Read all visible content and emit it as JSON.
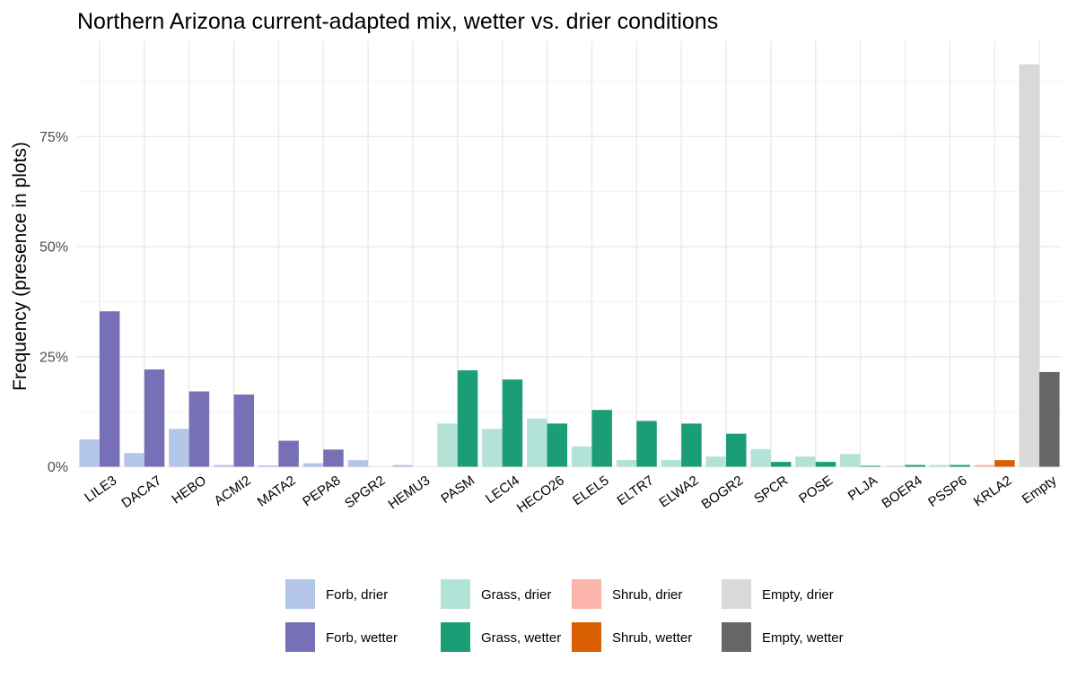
{
  "chart_data": {
    "type": "bar",
    "title": "Northern Arizona current-adapted mix, wetter vs. drier conditions",
    "xlabel": "",
    "ylabel": "Frequency (presence in plots)",
    "ylim": [
      0,
      0.95
    ],
    "yticks": [
      0,
      0.25,
      0.5,
      0.75
    ],
    "ytick_labels": [
      "0%",
      "25%",
      "50%",
      "75%"
    ],
    "grid": true,
    "legend_position": "bottom",
    "categories": [
      "LILE3",
      "DACA7",
      "HEBO",
      "ACMI2",
      "MATA2",
      "PEPA8",
      "SPGR2",
      "HEMU3",
      "PASM",
      "LECI4",
      "HECO26",
      "ELEL5",
      "ELTR7",
      "ELWA2",
      "BOGR2",
      "SPCR",
      "POSE",
      "PLJA",
      "BOER4",
      "PSSP6",
      "KRLA2",
      "Empty"
    ],
    "groups": [
      "Forb",
      "Forb",
      "Forb",
      "Forb",
      "Forb",
      "Forb",
      "Forb",
      "Forb",
      "Grass",
      "Grass",
      "Grass",
      "Grass",
      "Grass",
      "Grass",
      "Grass",
      "Grass",
      "Grass",
      "Grass",
      "Grass",
      "Grass",
      "Shrub",
      "Empty"
    ],
    "series": [
      {
        "name": "drier",
        "values": [
          0.062,
          0.031,
          0.086,
          0.004,
          0.003,
          0.008,
          0.015,
          0.004,
          0.098,
          0.086,
          0.109,
          0.046,
          0.015,
          0.015,
          0.023,
          0.04,
          0.023,
          0.029,
          0.002,
          0.004,
          0.004,
          0.914
        ]
      },
      {
        "name": "wetter",
        "values": [
          0.353,
          0.221,
          0.171,
          0.164,
          0.059,
          0.039,
          0.0,
          0.0,
          0.219,
          0.198,
          0.098,
          0.129,
          0.104,
          0.098,
          0.075,
          0.011,
          0.011,
          0.002,
          0.004,
          0.004,
          0.015,
          0.215
        ]
      }
    ],
    "colors": {
      "Forb, drier": "#b3c6e8",
      "Forb, wetter": "#7870b6",
      "Grass, drier": "#b3e2d6",
      "Grass, wetter": "#1b9e77",
      "Shrub, drier": "#fbb5ad",
      "Shrub, wetter": "#d95f02",
      "Empty, drier": "#d9d9d9",
      "Empty, wetter": "#666666"
    },
    "legend": [
      {
        "key": "Forb, drier",
        "label": "Forb, drier"
      },
      {
        "key": "Forb, wetter",
        "label": "Forb, wetter"
      },
      {
        "key": "Grass, drier",
        "label": "Grass, drier"
      },
      {
        "key": "Grass, wetter",
        "label": "Grass, wetter"
      },
      {
        "key": "Shrub, drier",
        "label": "Shrub, drier"
      },
      {
        "key": "Shrub, wetter",
        "label": "Shrub, wetter"
      },
      {
        "key": "Empty, drier",
        "label": "Empty, drier"
      },
      {
        "key": "Empty, wetter",
        "label": "Empty, wetter"
      }
    ]
  }
}
